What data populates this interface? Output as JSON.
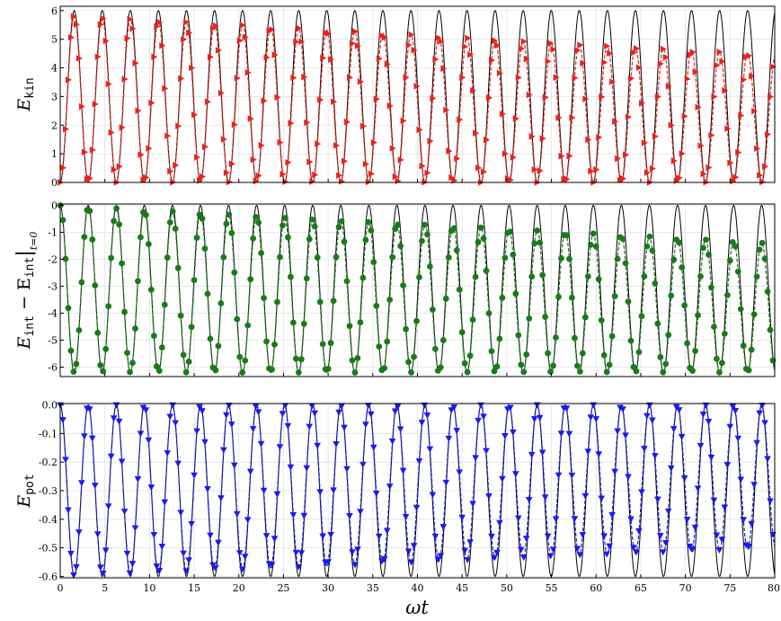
{
  "chart_data": {
    "type": "line",
    "xlabel": "ωt",
    "xlim": [
      0,
      80
    ],
    "x_ticks": [
      "0",
      "5",
      "10",
      "15",
      "20",
      "25",
      "30",
      "35",
      "40",
      "45",
      "50",
      "55",
      "60",
      "65",
      "70",
      "75",
      "80"
    ],
    "grid": true,
    "omega": 1.0,
    "panels": [
      {
        "ylabel_main": "E",
        "ylabel_sub": "kin",
        "ylim": [
          0,
          6.15
        ],
        "y_ticks": [
          0,
          1,
          2,
          3,
          4,
          5,
          6
        ],
        "y_tick_labels": [
          "0",
          "1",
          "2",
          "3",
          "4",
          "5",
          "6"
        ],
        "exact": {
          "offset": 3.0,
          "amplitude": -3.0,
          "color": "#000000"
        },
        "simulated": {
          "start_peak": 5.85,
          "end_peak": 4.45,
          "color": "#e8231f",
          "marker": "right-triangle"
        }
      },
      {
        "ylabel_main": "E",
        "ylabel_sub": "int",
        "ylabel_rest": "− E",
        "ylabel_sub2": "int",
        "ylabel_cond": "t=0",
        "ylim": [
          -6.35,
          0.05
        ],
        "y_ticks": [
          0,
          -1,
          -2,
          -3,
          -4,
          -5,
          -6
        ],
        "y_tick_labels": [
          "0",
          "-1",
          "-2",
          "-3",
          "-4",
          "-5",
          "-6"
        ],
        "exact": {
          "offset": -3.1,
          "amplitude": 3.1,
          "color": "#000000"
        },
        "simulated": {
          "start_peak": 0.0,
          "end_peak": -1.4,
          "color": "#1a7a1a",
          "marker": "circle"
        }
      },
      {
        "ylabel_main": "E",
        "ylabel_sub": "pot",
        "ylim": [
          -0.605,
          0.005
        ],
        "y_ticks": [
          0.0,
          -0.1,
          -0.2,
          -0.3,
          -0.4,
          -0.5,
          -0.6
        ],
        "y_tick_labels": [
          "0.0",
          "-0.1",
          "-0.2",
          "-0.3",
          "-0.4",
          "-0.5",
          "-0.6"
        ],
        "exact": {
          "offset": -0.3,
          "amplitude": 0.3,
          "color": "#000000"
        },
        "simulated": {
          "start_trough": -0.6,
          "end_trough": -0.5,
          "color": "#1a1aee",
          "marker": "down-triangle"
        }
      }
    ]
  }
}
